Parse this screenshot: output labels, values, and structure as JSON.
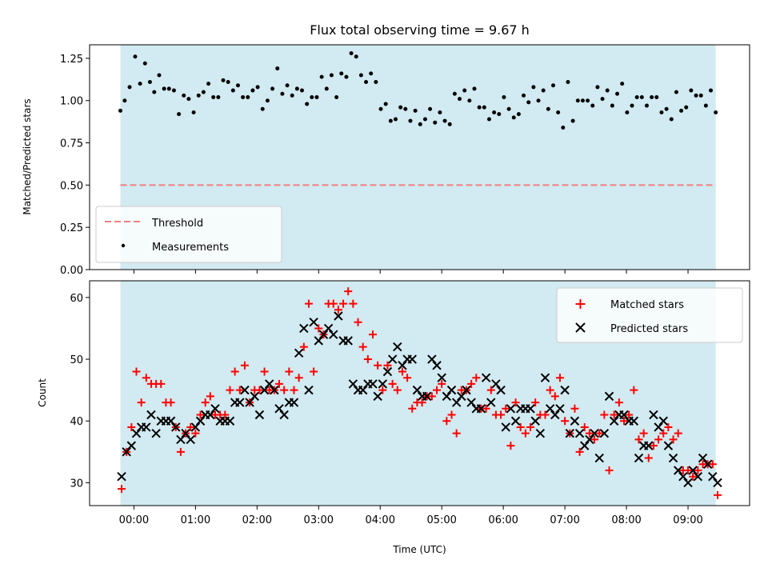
{
  "colors": {
    "background": "#ffffff",
    "shaded_region": "#add8e6",
    "threshold_line": "#f08080",
    "measurements": "#000000",
    "matched": "#ff0000",
    "predicted": "#000000"
  },
  "chart_data": [
    {
      "type": "scatter",
      "title": "Flux total observing time = 9.67 h",
      "xlabel": "",
      "ylabel": "Matched/Predicted stars",
      "x_unit": "hours UTC",
      "xlim": [
        -0.72,
        10.0
      ],
      "ylim": [
        0.0,
        1.33
      ],
      "yticks": [
        "0.00",
        "0.25",
        "0.50",
        "0.75",
        "1.00",
        "1.25"
      ],
      "yticks_values": [
        0.0,
        0.25,
        0.5,
        0.75,
        1.0,
        1.25
      ],
      "xticks_labels_shown": false,
      "shaded_span": [
        -0.22,
        9.45
      ],
      "legend": "lower-left",
      "threshold": {
        "name": "Threshold",
        "value": 0.5,
        "style": "dashed"
      },
      "series": [
        {
          "name": "Measurements",
          "marker": "dot",
          "x": [
            -0.22,
            -0.15,
            -0.07,
            0.02,
            0.1,
            0.18,
            0.26,
            0.33,
            0.41,
            0.49,
            0.57,
            0.65,
            0.73,
            0.81,
            0.89,
            0.97,
            1.05,
            1.13,
            1.21,
            1.29,
            1.37,
            1.45,
            1.53,
            1.61,
            1.69,
            1.77,
            1.85,
            1.93,
            2.01,
            2.09,
            2.17,
            2.25,
            2.33,
            2.41,
            2.49,
            2.57,
            2.65,
            2.73,
            2.81,
            2.89,
            2.97,
            3.05,
            3.13,
            3.21,
            3.29,
            3.37,
            3.45,
            3.53,
            3.61,
            3.69,
            3.77,
            3.85,
            3.93,
            4.01,
            4.09,
            4.17,
            4.25,
            4.33,
            4.41,
            4.49,
            4.57,
            4.65,
            4.73,
            4.81,
            4.89,
            4.97,
            5.05,
            5.13,
            5.21,
            5.29,
            5.37,
            5.45,
            5.53,
            5.61,
            5.69,
            5.77,
            5.85,
            5.93,
            6.01,
            6.09,
            6.17,
            6.25,
            6.33,
            6.41,
            6.49,
            6.57,
            6.65,
            6.73,
            6.81,
            6.89,
            6.97,
            7.05,
            7.13,
            7.21,
            7.29,
            7.37,
            7.45,
            7.53,
            7.61,
            7.69,
            7.77,
            7.85,
            7.93,
            8.01,
            8.09,
            8.17,
            8.25,
            8.33,
            8.41,
            8.49,
            8.57,
            8.65,
            8.73,
            8.81,
            8.89,
            8.97,
            9.05,
            9.13,
            9.21,
            9.29,
            9.37,
            9.45
          ],
          "y": [
            0.94,
            1.0,
            1.08,
            1.26,
            1.1,
            1.22,
            1.11,
            1.05,
            1.15,
            1.07,
            1.07,
            1.06,
            0.92,
            1.03,
            1.01,
            0.93,
            1.03,
            1.05,
            1.1,
            1.02,
            1.02,
            1.12,
            1.11,
            1.06,
            1.09,
            1.02,
            1.02,
            1.06,
            1.08,
            0.95,
            1.0,
            1.07,
            1.19,
            1.04,
            1.09,
            1.03,
            1.07,
            1.06,
            0.98,
            1.02,
            1.02,
            1.14,
            1.07,
            1.15,
            1.02,
            1.16,
            1.14,
            1.28,
            1.26,
            1.15,
            1.11,
            1.16,
            1.11,
            0.95,
            0.98,
            0.88,
            0.89,
            0.96,
            0.95,
            0.88,
            0.94,
            0.86,
            0.89,
            0.95,
            0.87,
            0.93,
            0.88,
            0.86,
            1.04,
            1.01,
            1.06,
            1.0,
            1.07,
            0.96,
            0.96,
            0.89,
            0.93,
            0.92,
            1.02,
            0.95,
            0.9,
            0.92,
            1.03,
            0.99,
            1.08,
            1.0,
            1.06,
            0.95,
            1.09,
            0.93,
            0.84,
            1.11,
            0.88,
            1.0,
            1.0,
            1.0,
            0.97,
            1.08,
            1.01,
            1.06,
            0.97,
            1.04,
            1.1,
            0.93,
            0.97,
            1.02,
            1.02,
            0.97,
            1.02,
            1.02,
            0.93,
            0.95,
            0.89,
            1.05,
            0.94,
            0.96,
            1.06,
            1.03,
            1.03,
            0.97,
            1.06,
            0.93
          ]
        }
      ]
    },
    {
      "type": "scatter",
      "title": "",
      "xlabel": "Time (UTC)",
      "ylabel": "Count",
      "x_unit": "hours UTC",
      "xlim": [
        -0.72,
        10.0
      ],
      "ylim": [
        26.3,
        62.7
      ],
      "xticks": [
        "00:00",
        "01:00",
        "02:00",
        "03:00",
        "04:00",
        "05:00",
        "06:00",
        "07:00",
        "08:00",
        "09:00"
      ],
      "xticks_values": [
        0,
        1,
        2,
        3,
        4,
        5,
        6,
        7,
        8,
        9
      ],
      "yticks": [
        "30",
        "40",
        "50",
        "60"
      ],
      "yticks_values": [
        30,
        40,
        50,
        60
      ],
      "shaded_span": [
        -0.22,
        9.45
      ],
      "legend": "top-right",
      "series": [
        {
          "name": "Matched stars",
          "marker": "plus",
          "x": [
            -0.2,
            -0.12,
            -0.04,
            0.04,
            0.12,
            0.2,
            0.28,
            0.36,
            0.44,
            0.52,
            0.6,
            0.68,
            0.76,
            0.84,
            0.92,
            1.0,
            1.08,
            1.16,
            1.24,
            1.32,
            1.4,
            1.48,
            1.56,
            1.64,
            1.72,
            1.8,
            1.88,
            1.96,
            2.04,
            2.12,
            2.2,
            2.28,
            2.36,
            2.44,
            2.52,
            2.6,
            2.68,
            2.76,
            2.84,
            2.92,
            3.0,
            3.08,
            3.16,
            3.24,
            3.32,
            3.4,
            3.48,
            3.56,
            3.64,
            3.72,
            3.8,
            3.88,
            3.96,
            4.04,
            4.12,
            4.2,
            4.28,
            4.36,
            4.44,
            4.52,
            4.6,
            4.68,
            4.76,
            4.84,
            4.92,
            5.0,
            5.08,
            5.16,
            5.24,
            5.32,
            5.4,
            5.48,
            5.56,
            5.64,
            5.72,
            5.8,
            5.88,
            5.96,
            6.04,
            6.12,
            6.2,
            6.28,
            6.36,
            6.44,
            6.52,
            6.6,
            6.68,
            6.76,
            6.84,
            6.92,
            7.0,
            7.08,
            7.16,
            7.24,
            7.32,
            7.4,
            7.48,
            7.56,
            7.64,
            7.72,
            7.8,
            7.88,
            7.96,
            8.04,
            8.12,
            8.2,
            8.28,
            8.36,
            8.44,
            8.52,
            8.6,
            8.68,
            8.76,
            8.84,
            8.92,
            9.0,
            9.08,
            9.16,
            9.24,
            9.32,
            9.4,
            9.48
          ],
          "y": [
            29,
            35,
            39,
            48,
            43,
            47,
            46,
            46,
            46,
            43,
            43,
            39,
            35,
            38,
            39,
            38,
            41,
            43,
            44,
            41,
            41,
            41,
            45,
            48,
            45,
            49,
            43,
            45,
            45,
            48,
            45,
            45,
            46,
            45,
            48,
            45,
            47,
            52,
            59,
            48,
            55,
            54,
            59,
            59,
            58,
            59,
            61,
            59,
            56,
            52,
            50,
            54,
            49,
            45,
            49,
            46,
            45,
            48,
            47,
            42,
            43,
            43,
            44,
            44,
            45,
            46,
            40,
            41,
            38,
            45,
            45,
            46,
            47,
            42,
            42,
            45,
            41,
            41,
            42,
            36,
            43,
            39,
            38,
            39,
            43,
            41,
            41,
            45,
            44,
            47,
            40,
            38,
            42,
            35,
            39,
            38,
            37,
            38,
            41,
            32,
            41,
            43,
            40,
            41,
            45,
            37,
            38,
            34,
            36,
            37,
            38,
            39,
            37,
            38,
            32,
            32,
            31,
            32,
            33,
            33,
            33,
            28
          ]
        },
        {
          "name": "Predicted stars",
          "marker": "x",
          "x": [
            -0.2,
            -0.12,
            -0.04,
            0.04,
            0.12,
            0.2,
            0.28,
            0.36,
            0.44,
            0.52,
            0.6,
            0.68,
            0.76,
            0.84,
            0.92,
            1.0,
            1.08,
            1.16,
            1.24,
            1.32,
            1.4,
            1.48,
            1.56,
            1.64,
            1.72,
            1.8,
            1.88,
            1.96,
            2.04,
            2.12,
            2.2,
            2.28,
            2.36,
            2.44,
            2.52,
            2.6,
            2.68,
            2.76,
            2.84,
            2.92,
            3.0,
            3.08,
            3.16,
            3.24,
            3.32,
            3.4,
            3.48,
            3.56,
            3.64,
            3.72,
            3.8,
            3.88,
            3.96,
            4.04,
            4.12,
            4.2,
            4.28,
            4.36,
            4.44,
            4.52,
            4.6,
            4.68,
            4.76,
            4.84,
            4.92,
            5.0,
            5.08,
            5.16,
            5.24,
            5.32,
            5.4,
            5.48,
            5.56,
            5.64,
            5.72,
            5.8,
            5.88,
            5.96,
            6.04,
            6.12,
            6.2,
            6.28,
            6.36,
            6.44,
            6.52,
            6.6,
            6.68,
            6.76,
            6.84,
            6.92,
            7.0,
            7.08,
            7.16,
            7.24,
            7.32,
            7.4,
            7.48,
            7.56,
            7.64,
            7.72,
            7.8,
            7.88,
            7.96,
            8.04,
            8.12,
            8.2,
            8.28,
            8.36,
            8.44,
            8.52,
            8.6,
            8.68,
            8.76,
            8.84,
            8.92,
            9.0,
            9.08,
            9.16,
            9.24,
            9.32,
            9.4,
            9.48
          ],
          "y": [
            31,
            35,
            36,
            38,
            39,
            39,
            41,
            38,
            40,
            40,
            40,
            39,
            37,
            38,
            37,
            39,
            40,
            41,
            41,
            42,
            40,
            40,
            40,
            43,
            43,
            45,
            43,
            44,
            41,
            45,
            46,
            45,
            42,
            41,
            43,
            43,
            51,
            55,
            45,
            56,
            53,
            54,
            55,
            54,
            57,
            53,
            53,
            46,
            45,
            45,
            46,
            46,
            44,
            46,
            48,
            50,
            52,
            49,
            50,
            50,
            45,
            44,
            44,
            50,
            49,
            47,
            44,
            45,
            43,
            44,
            45,
            43,
            42,
            42,
            47,
            43,
            46,
            45,
            39,
            42,
            40,
            42,
            42,
            42,
            40,
            38,
            47,
            42,
            41,
            42,
            45,
            38,
            40,
            38,
            36,
            37,
            38,
            34,
            38,
            44,
            40,
            41,
            41,
            40,
            40,
            34,
            36,
            36,
            41,
            39,
            40,
            36,
            34,
            32,
            31,
            30,
            32,
            31,
            34,
            33,
            31,
            30
          ]
        }
      ]
    }
  ]
}
